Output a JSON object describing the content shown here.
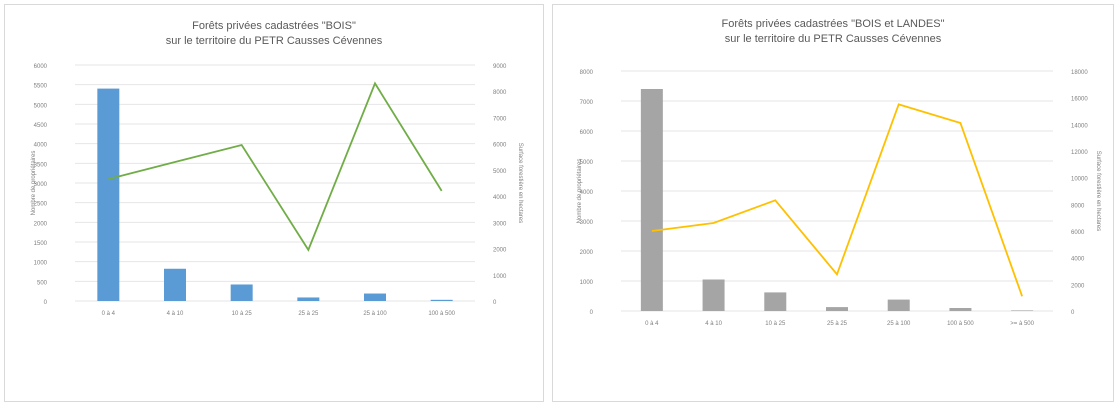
{
  "chart_data": [
    {
      "type": "bar+line",
      "title_line1": "Forêts privées cadastrées \"BOIS\"",
      "title_line2": "sur le territoire du PETR Causses Cévennes",
      "categories": [
        "0 à 4",
        "4 à 10",
        "10 à 25",
        "25 à 25",
        "25 à 100",
        "100 à 500"
      ],
      "series": [
        {
          "kind": "bar",
          "axis": "left",
          "color": "#5b9bd5",
          "values": [
            5400,
            820,
            420,
            90,
            190,
            30
          ]
        },
        {
          "kind": "line",
          "axis": "right",
          "color": "#70ad47",
          "values": [
            4650,
            5300,
            5950,
            1950,
            8300,
            4200
          ]
        }
      ],
      "ylabel_left": "Nombre de propriétaires",
      "ylabel_right": "Surface forestière en hectares",
      "ylim_left": [
        0,
        6000
      ],
      "ylim_right": [
        0,
        9000
      ],
      "yticks_left": [
        "0",
        "500",
        "1000",
        "1500",
        "2000",
        "2500",
        "3000",
        "3500",
        "4000",
        "4500",
        "5000",
        "5500",
        "6000"
      ],
      "yticks_right": [
        "0",
        "1000",
        "2000",
        "3000",
        "4000",
        "5000",
        "6000",
        "7000",
        "8000",
        "9000"
      ],
      "grid": true,
      "legend": "none"
    },
    {
      "type": "bar+line",
      "title_line1": "Forêts privées cadastrées \"BOIS et LANDES\"",
      "title_line2": "sur le territoire du PETR Causses Cévennes",
      "categories": [
        "0 à 4",
        "4 à 10",
        "10 à 25",
        "25 à 25",
        "25 à 100",
        "100 à 500",
        ">= à 500"
      ],
      "series": [
        {
          "kind": "bar",
          "axis": "left",
          "color": "#a5a5a5",
          "values": [
            7400,
            1050,
            620,
            130,
            380,
            100,
            20
          ]
        },
        {
          "kind": "line",
          "axis": "right",
          "color": "#ffc000",
          "values": [
            6000,
            6600,
            8300,
            2750,
            15500,
            14100,
            1100
          ]
        }
      ],
      "ylabel_left": "Nombre de propriétaires",
      "ylabel_right": "Surface forestière en hectares",
      "ylim_left": [
        0,
        8000
      ],
      "ylim_right": [
        0,
        18000
      ],
      "yticks_left": [
        "0",
        "1000",
        "2000",
        "3000",
        "4000",
        "5000",
        "6000",
        "7000",
        "8000"
      ],
      "yticks_right": [
        "0",
        "2000",
        "4000",
        "6000",
        "8000",
        "10000",
        "12000",
        "14000",
        "16000",
        "18000"
      ],
      "grid": true,
      "legend": "none"
    }
  ]
}
